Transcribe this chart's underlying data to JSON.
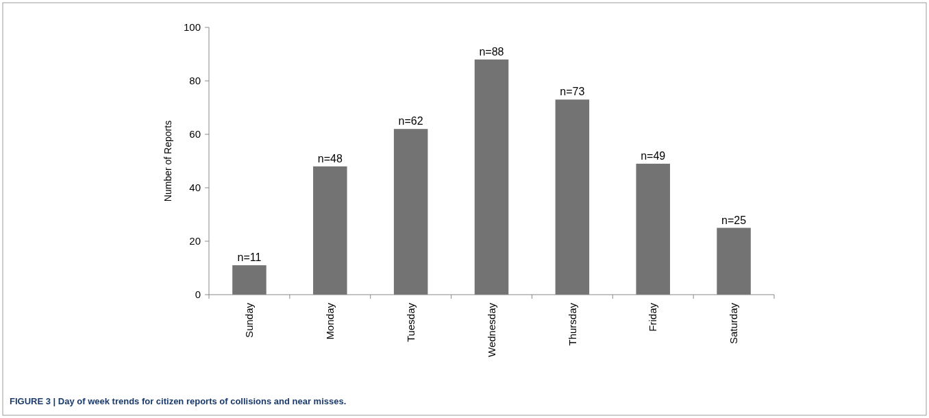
{
  "chart_data": {
    "type": "bar",
    "categories": [
      "Sunday",
      "Monday",
      "Tuesday",
      "Wednesday",
      "Thursday",
      "Friday",
      "Saturday"
    ],
    "values": [
      11,
      48,
      62,
      88,
      73,
      49,
      25
    ],
    "value_labels": [
      "n=11",
      "n=48",
      "n=62",
      "n=88",
      "n=73",
      "n=49",
      "n=25"
    ],
    "color": "#737373",
    "ylabel": "Number of Reports",
    "ylim": [
      0,
      100
    ],
    "yticks": [
      0,
      20,
      40,
      60,
      80,
      100
    ],
    "grid": false,
    "annotations": [
      "FIGURE 3 | Day of week trends for citizen reports of collisions and near misses."
    ]
  }
}
